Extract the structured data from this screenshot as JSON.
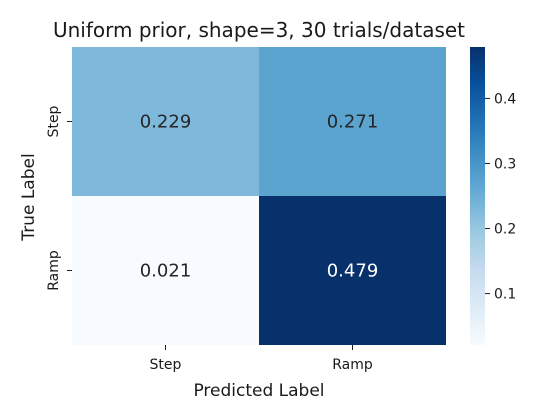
{
  "chart_data": {
    "type": "heatmap",
    "title": "Uniform prior, shape=3, 30 trials/dataset",
    "xlabel": "Predicted Label",
    "ylabel": "True Label",
    "x_categories": [
      "Step",
      "Ramp"
    ],
    "y_categories": [
      "Step",
      "Ramp"
    ],
    "values": [
      [
        0.229,
        0.271
      ],
      [
        0.021,
        0.479
      ]
    ],
    "value_labels": [
      [
        "0.229",
        "0.271"
      ],
      [
        "0.021",
        "0.479"
      ]
    ],
    "colormap": "Blues",
    "colorbar": {
      "range": [
        0.021,
        0.479
      ],
      "ticks": [
        0.1,
        0.2,
        0.3,
        0.4
      ],
      "tick_labels": [
        "0.1",
        "0.2",
        "0.3",
        "0.4"
      ]
    },
    "colors": {
      "low": "#f7fbff",
      "high": "#08306b"
    }
  }
}
